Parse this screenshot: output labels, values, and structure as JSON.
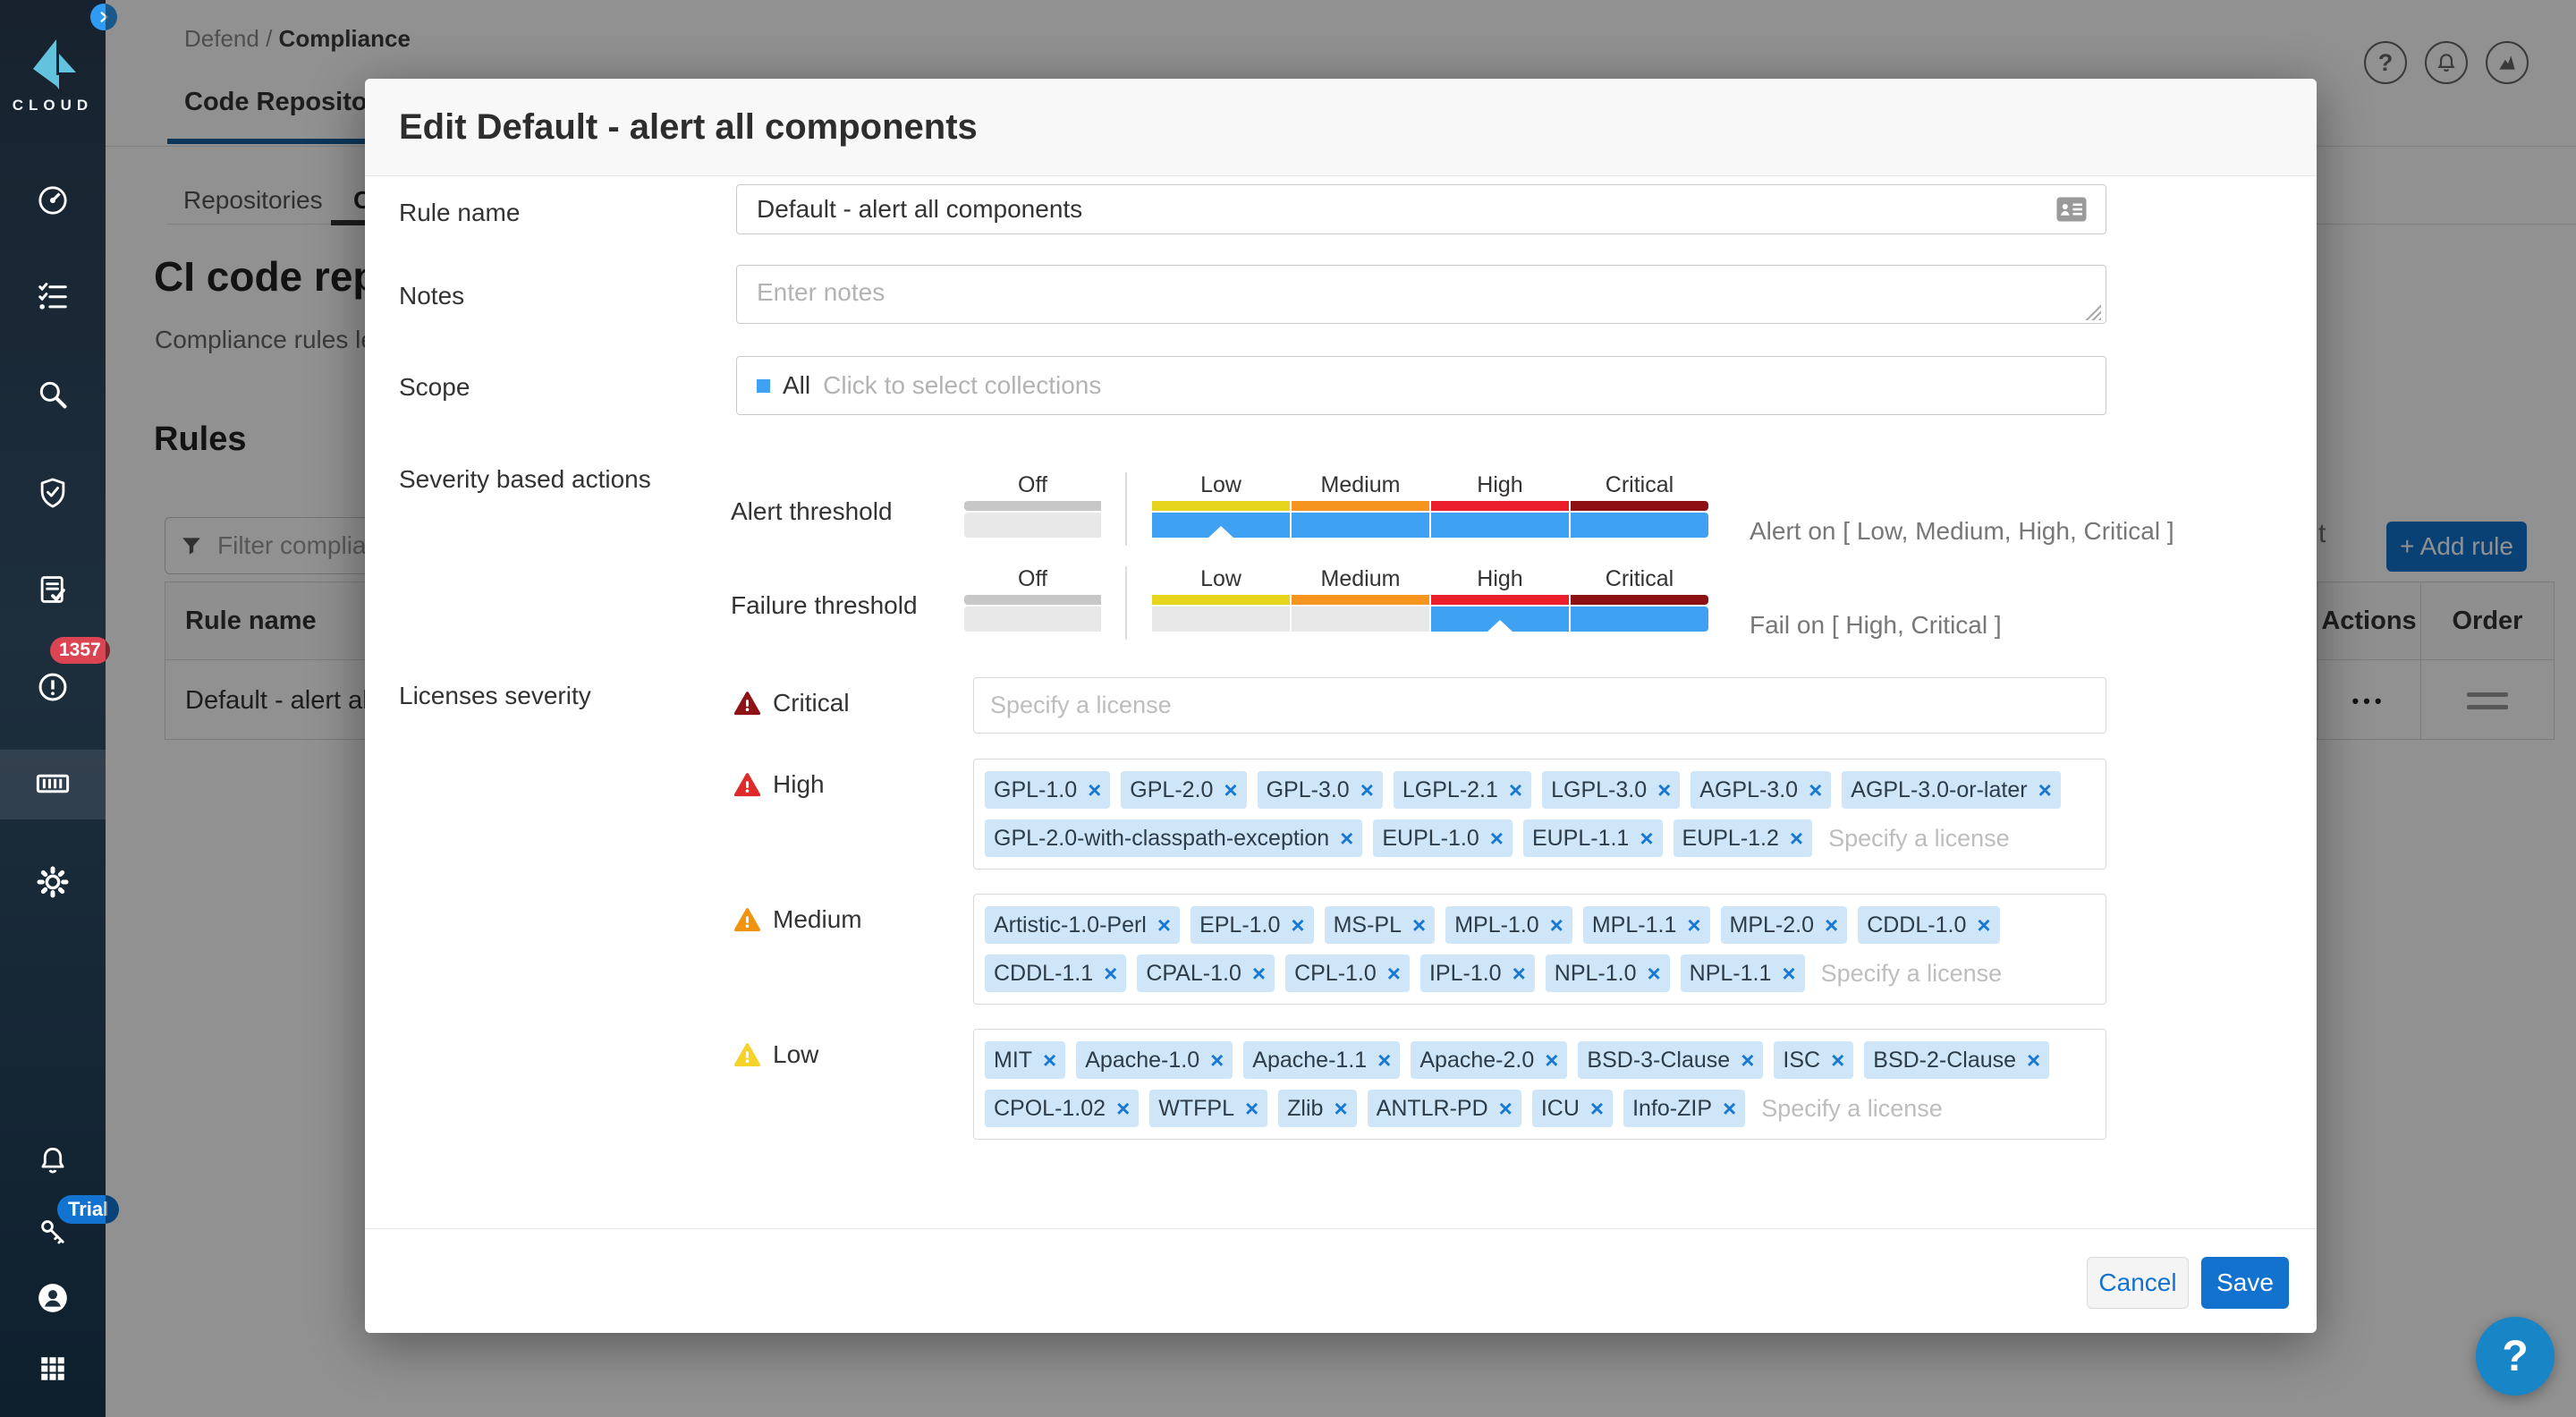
{
  "sidebar": {
    "logo_text": "CLOUD",
    "badge_count": "1357",
    "trial_label": "Trial"
  },
  "header": {
    "breadcrumb": {
      "parent": "Defend",
      "separator": "/",
      "current": "Compliance"
    },
    "tab_label": "Code Repositories",
    "help_glyph": "?"
  },
  "page": {
    "subtab_repositories": "Repositories",
    "subtab_ci": "CI",
    "title_fragment": "CI code repo",
    "description_fragment": "Compliance rules let y",
    "rules_heading": "Rules",
    "filter_placeholder": "Filter compliance",
    "partial_text": "t",
    "add_rule_label": "+ Add rule",
    "table": {
      "columns": [
        "Rule name",
        "Actions",
        "Order"
      ],
      "row_name": "Default - alert all co",
      "row_actions_glyph": "•••"
    }
  },
  "modal": {
    "title": "Edit Default - alert all components",
    "fields": {
      "rule_name": {
        "label": "Rule name",
        "value": "Default - alert all components"
      },
      "notes": {
        "label": "Notes",
        "placeholder": "Enter notes"
      },
      "scope": {
        "label": "Scope",
        "value": "All",
        "placeholder": "Click to select collections"
      }
    },
    "severity": {
      "section_label": "Severity based actions",
      "off_label": "Off",
      "levels": [
        "Low",
        "Medium",
        "High",
        "Critical"
      ],
      "alert": {
        "label": "Alert threshold",
        "selected": [
          "Low",
          "Medium",
          "High",
          "Critical"
        ],
        "marker": "Low",
        "summary": "Alert on [ Low, Medium, High, Critical ]"
      },
      "failure": {
        "label": "Failure threshold",
        "selected": [
          "High",
          "Critical"
        ],
        "marker": "High",
        "summary": "Fail on [ High, Critical ]"
      }
    },
    "licenses": {
      "section_label": "Licenses severity",
      "placeholder": "Specify a license",
      "remove_glyph": "×",
      "rows": [
        {
          "severity": "Critical",
          "color": "#8e1216",
          "chips": []
        },
        {
          "severity": "High",
          "color": "#e02a2a",
          "chips": [
            "GPL-1.0",
            "GPL-2.0",
            "GPL-3.0",
            "LGPL-2.1",
            "LGPL-3.0",
            "AGPL-3.0",
            "AGPL-3.0-or-later",
            "GPL-2.0-with-classpath-exception",
            "EUPL-1.0",
            "EUPL-1.1",
            "EUPL-1.2"
          ]
        },
        {
          "severity": "Medium",
          "color": "#f0930f",
          "chips": [
            "Artistic-1.0-Perl",
            "EPL-1.0",
            "MS-PL",
            "MPL-1.0",
            "MPL-1.1",
            "MPL-2.0",
            "CDDL-1.0",
            "CDDL-1.1",
            "CPAL-1.0",
            "CPL-1.0",
            "IPL-1.0",
            "NPL-1.0",
            "NPL-1.1"
          ]
        },
        {
          "severity": "Low",
          "color": "#f6d32b",
          "chips": [
            "MIT",
            "Apache-1.0",
            "Apache-1.1",
            "Apache-2.0",
            "BSD-3-Clause",
            "ISC",
            "BSD-2-Clause",
            "CPOL-1.02",
            "WTFPL",
            "Zlib",
            "ANTLR-PD",
            "ICU",
            "Info-ZIP"
          ]
        }
      ]
    },
    "footer": {
      "cancel_label": "Cancel",
      "save_label": "Save"
    }
  },
  "help_fab_glyph": "?",
  "colors": {
    "accent": "#1272ce",
    "threshold": {
      "levels": [
        "#e7d51d",
        "#f5941f",
        "#ea1f2b",
        "#8c1014"
      ],
      "selected_bar": "#3fa1f1",
      "off_strip": "#c7c7c7",
      "off_bar": "#e8e8e8"
    },
    "chip_bg": "#cfe6f9"
  }
}
